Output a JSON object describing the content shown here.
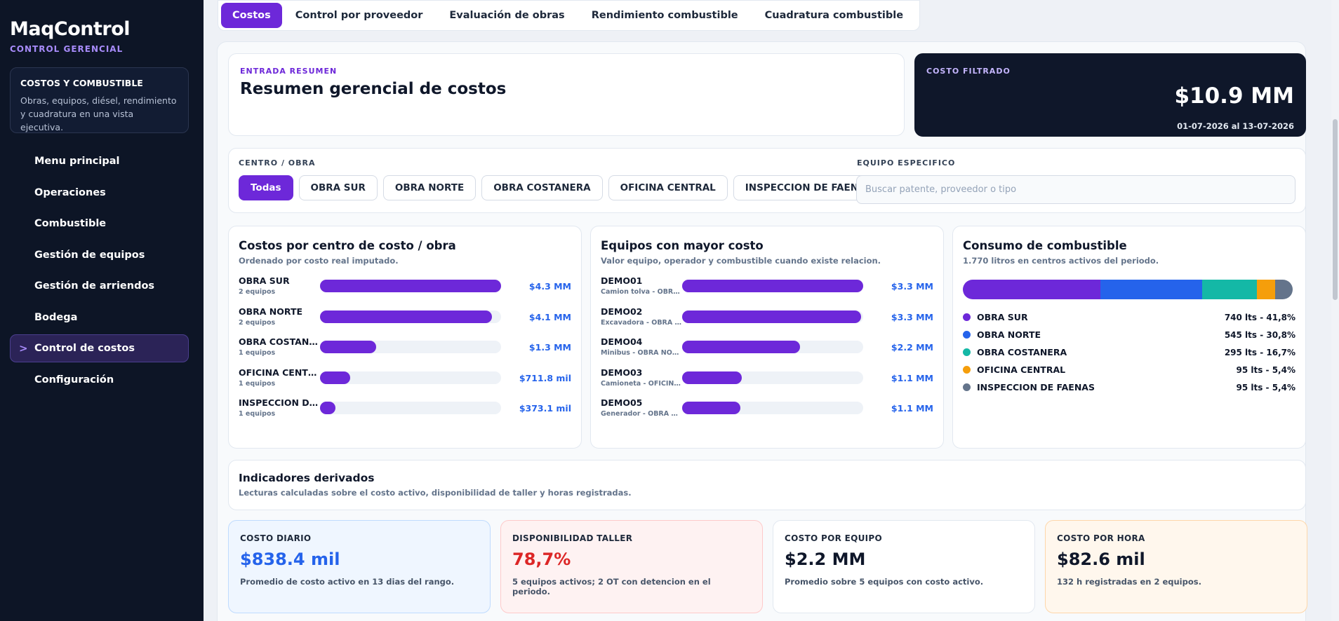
{
  "brand": {
    "title": "MaqControl",
    "subtitle": "CONTROL GERENCIAL"
  },
  "sidebar": {
    "info": {
      "title": "COSTOS Y COMBUSTIBLE",
      "desc": "Obras, equipos, diésel, rendimiento y cuadratura en una vista ejecutiva."
    },
    "items": [
      {
        "label": "Menu principal"
      },
      {
        "label": "Operaciones"
      },
      {
        "label": "Combustible"
      },
      {
        "label": "Gestión de equipos"
      },
      {
        "label": "Gestión de arriendos"
      },
      {
        "label": "Bodega"
      },
      {
        "label": "Control de costos",
        "active": true
      },
      {
        "label": "Configuración"
      }
    ],
    "active_marker": ">"
  },
  "tabs": [
    {
      "label": "Costos",
      "active": true
    },
    {
      "label": "Control por proveedor"
    },
    {
      "label": "Evaluación de obras"
    },
    {
      "label": "Rendimiento combustible"
    },
    {
      "label": "Cuadratura combustible"
    }
  ],
  "summary": {
    "eyebrow": "ENTRADA RESUMEN",
    "title": "Resumen gerencial de costos"
  },
  "cost": {
    "eyebrow": "COSTO FILTRADO",
    "value": "$10.9 MM",
    "range": "01-07-2026 al 13-07-2026"
  },
  "filters": {
    "centro_label": "CENTRO / OBRA",
    "chips": [
      {
        "label": "Todas",
        "active": true
      },
      {
        "label": "OBRA SUR"
      },
      {
        "label": "OBRA NORTE"
      },
      {
        "label": "OBRA COSTANERA"
      },
      {
        "label": "OFICINA CENTRAL"
      },
      {
        "label": "INSPECCION DE FAENAS"
      }
    ],
    "equipo_label": "EQUIPO ESPECIFICO",
    "search_placeholder": "Buscar patente, proveedor o tipo"
  },
  "costs_by_center": {
    "title": "Costos por centro de costo / obra",
    "subtitle": "Ordenado por costo real imputado.",
    "rows": [
      {
        "name": "OBRA SUR",
        "meta": "2 equipos",
        "value": "$4.3 MM",
        "fraction": 1.0
      },
      {
        "name": "OBRA NORTE",
        "meta": "2 equipos",
        "value": "$4.1 MM",
        "fraction": 0.95
      },
      {
        "name": "OBRA COSTANERA",
        "meta": "1 equipos",
        "value": "$1.3 MM",
        "fraction": 0.31
      },
      {
        "name": "OFICINA CENTRAL",
        "meta": "1 equipos",
        "value": "$711.8 mil",
        "fraction": 0.165
      },
      {
        "name": "INSPECCION DE FAENAS",
        "meta": "1 equipos",
        "value": "$373.1 mil",
        "fraction": 0.085
      }
    ]
  },
  "top_equipment": {
    "title": "Equipos con mayor costo",
    "subtitle": "Valor equipo, operador y combustible cuando existe relacion.",
    "rows": [
      {
        "name": "DEMO01",
        "meta": "Camion tolva - OBRA SUR",
        "value": "$3.3 MM",
        "fraction": 1.0
      },
      {
        "name": "DEMO02",
        "meta": "Excavadora - OBRA NORTE",
        "value": "$3.3 MM",
        "fraction": 0.99
      },
      {
        "name": "DEMO04",
        "meta": "Minibus - OBRA NORTE",
        "value": "$2.2 MM",
        "fraction": 0.65
      },
      {
        "name": "DEMO03",
        "meta": "Camioneta - OFICINA CENTRAL",
        "value": "$1.1 MM",
        "fraction": 0.33
      },
      {
        "name": "DEMO05",
        "meta": "Generador - OBRA SUR",
        "value": "$1.1 MM",
        "fraction": 0.32
      }
    ]
  },
  "fuel": {
    "title": "Consumo de combustible",
    "subtitle": "1.770 litros en centros activos del periodo.",
    "segments": [
      {
        "name": "OBRA SUR",
        "value": "740 lts - 41,8%",
        "percent": 41.8,
        "color": "#6d28d9"
      },
      {
        "name": "OBRA NORTE",
        "value": "545 lts - 30,8%",
        "percent": 30.8,
        "color": "#2563eb"
      },
      {
        "name": "OBRA COSTANERA",
        "value": "295 lts - 16,7%",
        "percent": 16.7,
        "color": "#14b8a6"
      },
      {
        "name": "OFICINA CENTRAL",
        "value": "95 lts - 5,4%",
        "percent": 5.4,
        "color": "#f59e0b"
      },
      {
        "name": "INSPECCION DE FAENAS",
        "value": "95 lts - 5,4%",
        "percent": 5.4,
        "color": "#64748b"
      }
    ]
  },
  "indicators": {
    "title": "Indicadores derivados",
    "subtitle": "Lecturas calculadas sobre el costo activo, disponibilidad de taller y horas registradas."
  },
  "kpis": [
    {
      "label": "COSTO DIARIO",
      "value": "$838.4 mil",
      "desc": "Promedio de costo activo en 13 dias del rango.",
      "bg": "#eff6ff",
      "border": "#bfdbfe",
      "color": "#2563eb"
    },
    {
      "label": "DISPONIBILIDAD TALLER",
      "value": "78,7%",
      "desc": "5 equipos activos; 2 OT con detencion en el periodo.",
      "bg": "#fef2f2",
      "border": "#fecaca",
      "color": "#dc2626"
    },
    {
      "label": "COSTO POR EQUIPO",
      "value": "$2.2 MM",
      "desc": "Promedio sobre 5 equipos con costo activo.",
      "bg": "#ffffff",
      "border": "#e2e8f0",
      "color": "#0f172a"
    },
    {
      "label": "COSTO POR HORA",
      "value": "$82.6 mil",
      "desc": "132 h registradas en 2 equipos.",
      "bg": "#fff7ed",
      "border": "#fed7aa",
      "color": "#0f172a"
    }
  ]
}
